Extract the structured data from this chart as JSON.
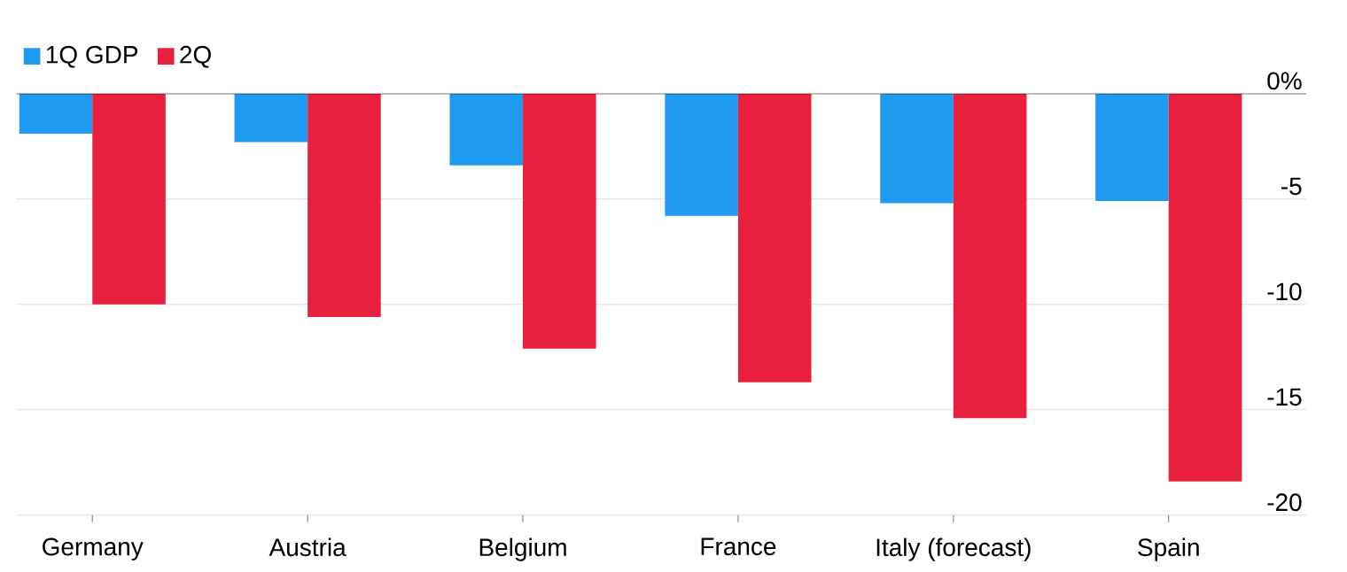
{
  "chart_data": {
    "type": "bar",
    "categories": [
      "Germany",
      "Austria",
      "Belgium",
      "France",
      "Italy (forecast)",
      "Spain"
    ],
    "series": [
      {
        "name": "1Q GDP",
        "color": "#1e9bf0",
        "values": [
          -1.9,
          -2.3,
          -3.4,
          -5.8,
          -5.2,
          -5.1
        ]
      },
      {
        "name": "2Q",
        "color": "#e8203e",
        "values": [
          -10.0,
          -10.6,
          -12.1,
          -13.7,
          -15.4,
          -18.4
        ]
      }
    ],
    "ylim": [
      -20,
      0
    ],
    "yticks": [
      {
        "value": 0,
        "label": "0%"
      },
      -5,
      -10,
      -15,
      -20
    ],
    "grid": "y",
    "legend": "top left"
  }
}
